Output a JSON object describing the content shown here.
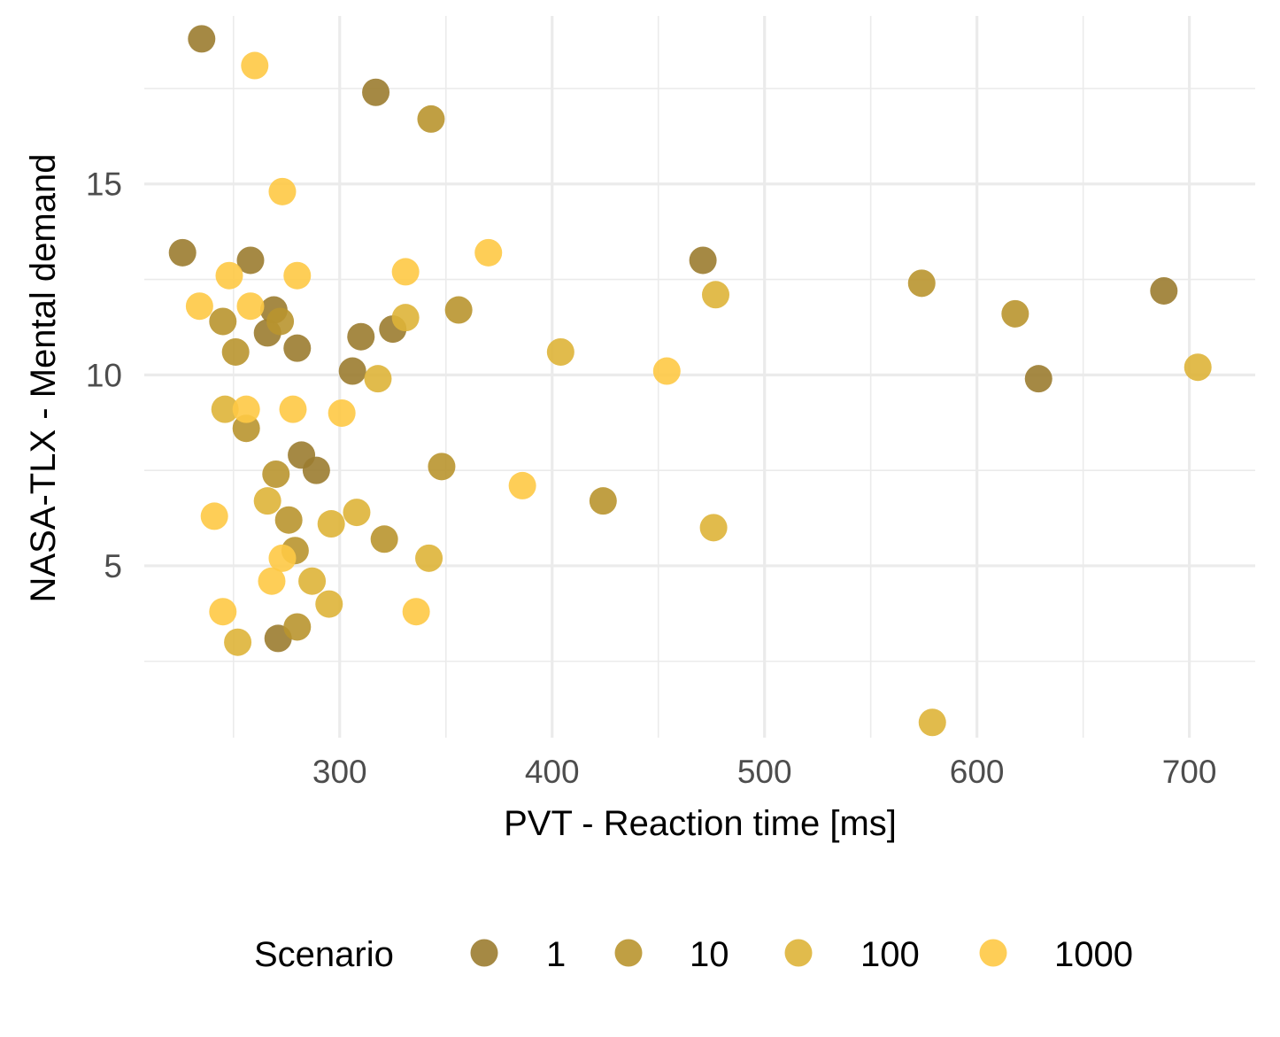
{
  "chart_data": {
    "type": "scatter",
    "xlabel": "PVT - Reaction time [ms]",
    "ylabel": "NASA-TLX - Mental demand",
    "xlim": [
      208,
      731
    ],
    "ylim": [
      0.5,
      19.4
    ],
    "x_ticks": [
      300,
      400,
      500,
      600,
      700
    ],
    "y_ticks": [
      5,
      10,
      15
    ],
    "grid": true,
    "legend": {
      "title": "Scenario",
      "position": "bottom",
      "labels": [
        "1",
        "10",
        "100",
        "1000"
      ]
    },
    "colors": {
      "1": "#9b7c30",
      "10": "#b9952f",
      "100": "#deb438",
      "1000": "#fec945"
    },
    "series": [
      {
        "name": "1",
        "points": [
          [
            235,
            18.8
          ],
          [
            317,
            17.4
          ],
          [
            226,
            13.2
          ],
          [
            258,
            13.0
          ],
          [
            471,
            13.0
          ],
          [
            688,
            12.2
          ],
          [
            269,
            11.7
          ],
          [
            266,
            11.1
          ],
          [
            325,
            11.2
          ],
          [
            310,
            11.0
          ],
          [
            280,
            10.7
          ],
          [
            306,
            10.1
          ],
          [
            629,
            9.9
          ],
          [
            282,
            7.9
          ],
          [
            289,
            7.5
          ],
          [
            271,
            3.1
          ]
        ]
      },
      {
        "name": "10",
        "points": [
          [
            343,
            16.7
          ],
          [
            574,
            12.4
          ],
          [
            618,
            11.6
          ],
          [
            356,
            11.7
          ],
          [
            272,
            11.4
          ],
          [
            245,
            11.4
          ],
          [
            251,
            10.6
          ],
          [
            256,
            8.6
          ],
          [
            348,
            7.6
          ],
          [
            270,
            7.4
          ],
          [
            424,
            6.7
          ],
          [
            276,
            6.2
          ],
          [
            279,
            5.4
          ],
          [
            321,
            5.7
          ],
          [
            280,
            3.4
          ]
        ]
      },
      {
        "name": "100",
        "points": [
          [
            477,
            12.1
          ],
          [
            331,
            11.5
          ],
          [
            404,
            10.6
          ],
          [
            704,
            10.2
          ],
          [
            318,
            9.9
          ],
          [
            246,
            9.1
          ],
          [
            266,
            6.7
          ],
          [
            296,
            6.1
          ],
          [
            308,
            6.4
          ],
          [
            342,
            5.2
          ],
          [
            287,
            4.6
          ],
          [
            295,
            4.0
          ],
          [
            252,
            3.0
          ],
          [
            579,
            0.9
          ],
          [
            476,
            6.0
          ]
        ]
      },
      {
        "name": "1000",
        "points": [
          [
            260,
            18.1
          ],
          [
            273,
            14.8
          ],
          [
            370,
            13.2
          ],
          [
            331,
            12.7
          ],
          [
            248,
            12.6
          ],
          [
            280,
            12.6
          ],
          [
            234,
            11.8
          ],
          [
            258,
            11.8
          ],
          [
            454,
            10.1
          ],
          [
            256,
            9.1
          ],
          [
            278,
            9.1
          ],
          [
            301,
            9.0
          ],
          [
            386,
            7.1
          ],
          [
            241,
            6.3
          ],
          [
            273,
            5.2
          ],
          [
            268,
            4.6
          ],
          [
            245,
            3.8
          ],
          [
            336,
            3.8
          ]
        ]
      }
    ]
  }
}
